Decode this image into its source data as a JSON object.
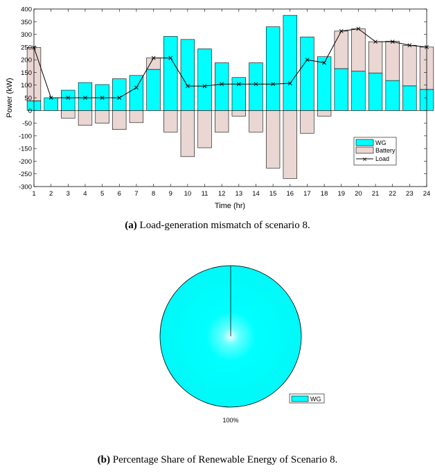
{
  "chart_data": [
    {
      "type": "bar",
      "xlabel": "Time (hr)",
      "ylabel": "Power (kW)",
      "xlim": [
        1,
        24
      ],
      "ylim": [
        -300,
        400
      ],
      "yticks": [
        -300,
        -250,
        -200,
        -150,
        -100,
        -50,
        0,
        50,
        100,
        150,
        200,
        250,
        300,
        350,
        400
      ],
      "categories": [
        "1",
        "2",
        "3",
        "4",
        "5",
        "6",
        "7",
        "8",
        "9",
        "10",
        "11",
        "12",
        "13",
        "14",
        "15",
        "16",
        "17",
        "18",
        "19",
        "20",
        "21",
        "22",
        "23",
        "24"
      ],
      "legend_position": "bottom-right",
      "series": [
        {
          "name": "WG",
          "color": "#00ffff",
          "values": [
            38,
            50,
            80,
            110,
            102,
            125,
            138,
            162,
            292,
            280,
            243,
            188,
            130,
            188,
            330,
            375,
            290,
            212,
            165,
            155,
            148,
            118,
            97,
            83
          ]
        },
        {
          "name": "Battery",
          "color": "#ead7d4",
          "values": [
            210,
            0,
            -30,
            -58,
            -50,
            -75,
            -48,
            45,
            -85,
            -182,
            -147,
            -85,
            -22,
            -85,
            -227,
            -268,
            -90,
            -22,
            148,
            167,
            123,
            155,
            160,
            167
          ]
        },
        {
          "name": "Load",
          "color": "#000000",
          "values": [
            248,
            50,
            50,
            50,
            50,
            50,
            90,
            207,
            207,
            96,
            96,
            104,
            104,
            104,
            104,
            107,
            200,
            188,
            313,
            322,
            271,
            271,
            257,
            250
          ]
        }
      ],
      "caption_label": "(a)",
      "caption_text": "Load-generation mismatch of scenario 8."
    },
    {
      "type": "pie",
      "categories": [
        "WG"
      ],
      "values": [
        100
      ],
      "colors": [
        "#00ffff"
      ],
      "slice_labels": [
        "100%"
      ],
      "legend_position": "bottom-right",
      "caption_label": "(b)",
      "caption_text": "Percentage Share of Renewable Energy of Scenario 8."
    }
  ]
}
